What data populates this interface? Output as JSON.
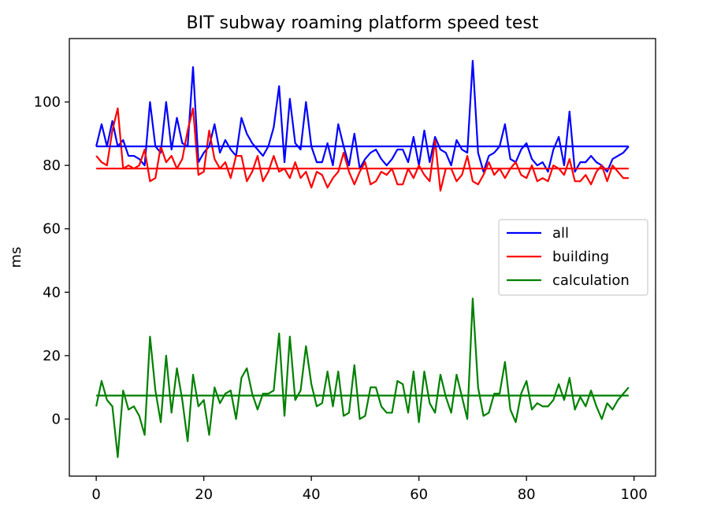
{
  "chart_data": {
    "type": "line",
    "title": "BIT subway roaming platform speed test",
    "xlabel": "",
    "ylabel": "ms",
    "xlim": [
      -5,
      104
    ],
    "ylim": [
      -18,
      120
    ],
    "xticks": [
      0,
      20,
      40,
      60,
      80,
      100
    ],
    "yticks": [
      0,
      20,
      40,
      60,
      80,
      100
    ],
    "grid": false,
    "legend_position": "center-right",
    "series": [
      {
        "name": "all",
        "color": "#0000ff",
        "x": [
          0,
          1,
          2,
          3,
          4,
          5,
          6,
          7,
          8,
          9,
          10,
          11,
          12,
          13,
          14,
          15,
          16,
          17,
          18,
          19,
          20,
          21,
          22,
          23,
          24,
          25,
          26,
          27,
          28,
          29,
          30,
          31,
          32,
          33,
          34,
          35,
          36,
          37,
          38,
          39,
          40,
          41,
          42,
          43,
          44,
          45,
          46,
          47,
          48,
          49,
          50,
          51,
          52,
          53,
          54,
          55,
          56,
          57,
          58,
          59,
          60,
          61,
          62,
          63,
          64,
          65,
          66,
          67,
          68,
          69,
          70,
          71,
          72,
          73,
          74,
          75,
          76,
          77,
          78,
          79,
          80,
          81,
          82,
          83,
          84,
          85,
          86,
          87,
          88,
          89,
          90,
          91,
          92,
          93,
          94,
          95,
          96,
          97,
          98,
          99
        ],
        "y": [
          86,
          93,
          86,
          94,
          86,
          88,
          83,
          83,
          82,
          80,
          100,
          86,
          84,
          100,
          85,
          95,
          87,
          86,
          111,
          81,
          84,
          86,
          93,
          84,
          88,
          85,
          83,
          95,
          90,
          87,
          85,
          83,
          86,
          92,
          105,
          81,
          101,
          87,
          85,
          100,
          86,
          81,
          81,
          87,
          80,
          93,
          86,
          80,
          90,
          79,
          82,
          84,
          85,
          82,
          80,
          82,
          85,
          85,
          81,
          89,
          80,
          91,
          81,
          89,
          85,
          84,
          80,
          88,
          85,
          84,
          113,
          84,
          78,
          83,
          84,
          86,
          93,
          82,
          81,
          85,
          87,
          82,
          80,
          81,
          78,
          85,
          89,
          80,
          97,
          78,
          81,
          81,
          83,
          81,
          80,
          78,
          82,
          83,
          84,
          86
        ]
      },
      {
        "name": "building",
        "color": "#ff0000",
        "x": [
          0,
          1,
          2,
          3,
          4,
          5,
          6,
          7,
          8,
          9,
          10,
          11,
          12,
          13,
          14,
          15,
          16,
          17,
          18,
          19,
          20,
          21,
          22,
          23,
          24,
          25,
          26,
          27,
          28,
          29,
          30,
          31,
          32,
          33,
          34,
          35,
          36,
          37,
          38,
          39,
          40,
          41,
          42,
          43,
          44,
          45,
          46,
          47,
          48,
          49,
          50,
          51,
          52,
          53,
          54,
          55,
          56,
          57,
          58,
          59,
          60,
          61,
          62,
          63,
          64,
          65,
          66,
          67,
          68,
          69,
          70,
          71,
          72,
          73,
          74,
          75,
          76,
          77,
          78,
          79,
          80,
          81,
          82,
          83,
          84,
          85,
          86,
          87,
          88,
          89,
          90,
          91,
          92,
          93,
          94,
          95,
          96,
          97,
          98,
          99
        ],
        "y": [
          83,
          81,
          80,
          91,
          98,
          79,
          80,
          79,
          80,
          85,
          75,
          76,
          86,
          81,
          83,
          79,
          82,
          91,
          98,
          77,
          78,
          91,
          82,
          79,
          81,
          76,
          83,
          83,
          75,
          78,
          83,
          75,
          78,
          83,
          78,
          79,
          76,
          81,
          76,
          78,
          73,
          78,
          77,
          73,
          76,
          78,
          84,
          78,
          74,
          78,
          81,
          74,
          75,
          78,
          77,
          79,
          74,
          74,
          79,
          76,
          80,
          77,
          75,
          88,
          72,
          79,
          79,
          75,
          77,
          83,
          75,
          74,
          77,
          81,
          77,
          79,
          76,
          79,
          81,
          77,
          76,
          80,
          75,
          76,
          75,
          80,
          79,
          77,
          82,
          75,
          75,
          77,
          74,
          78,
          80,
          75,
          80,
          78,
          76,
          76
        ]
      },
      {
        "name": "calculation",
        "color": "#008000",
        "x": [
          0,
          1,
          2,
          3,
          4,
          5,
          6,
          7,
          8,
          9,
          10,
          11,
          12,
          13,
          14,
          15,
          16,
          17,
          18,
          19,
          20,
          21,
          22,
          23,
          24,
          25,
          26,
          27,
          28,
          29,
          30,
          31,
          32,
          33,
          34,
          35,
          36,
          37,
          38,
          39,
          40,
          41,
          42,
          43,
          44,
          45,
          46,
          47,
          48,
          49,
          50,
          51,
          52,
          53,
          54,
          55,
          56,
          57,
          58,
          59,
          60,
          61,
          62,
          63,
          64,
          65,
          66,
          67,
          68,
          69,
          70,
          71,
          72,
          73,
          74,
          75,
          76,
          77,
          78,
          79,
          80,
          81,
          82,
          83,
          84,
          85,
          86,
          87,
          88,
          89,
          90,
          91,
          92,
          93,
          94,
          95,
          96,
          97,
          98,
          99
        ],
        "y": [
          4,
          12,
          6,
          4,
          -12,
          9,
          3,
          4,
          1,
          -5,
          26,
          9,
          -1,
          20,
          2,
          16,
          6,
          -7,
          14,
          4,
          6,
          -5,
          10,
          5,
          8,
          9,
          0,
          13,
          16,
          8,
          3,
          8,
          8,
          9,
          27,
          1,
          26,
          6,
          9,
          23,
          11,
          4,
          5,
          15,
          4,
          15,
          1,
          2,
          17,
          0,
          1,
          10,
          10,
          4,
          2,
          2,
          12,
          11,
          2,
          15,
          -1,
          15,
          5,
          2,
          14,
          7,
          2,
          14,
          7,
          0,
          38,
          10,
          1,
          2,
          8,
          8,
          18,
          3,
          -1,
          8,
          12,
          3,
          5,
          4,
          4,
          6,
          11,
          6,
          13,
          3,
          7,
          4,
          9,
          4,
          0,
          5,
          3,
          6,
          8,
          10
        ]
      },
      {
        "name": "",
        "color": "#0000ff",
        "x": [
          0,
          99
        ],
        "y": [
          86,
          86
        ]
      },
      {
        "name": "",
        "color": "#ff0000",
        "x": [
          0,
          99
        ],
        "y": [
          79,
          79
        ]
      },
      {
        "name": "",
        "color": "#008000",
        "x": [
          0,
          99
        ],
        "y": [
          7.4,
          7.4
        ]
      }
    ],
    "legend": [
      "all",
      "building",
      "calculation"
    ]
  }
}
